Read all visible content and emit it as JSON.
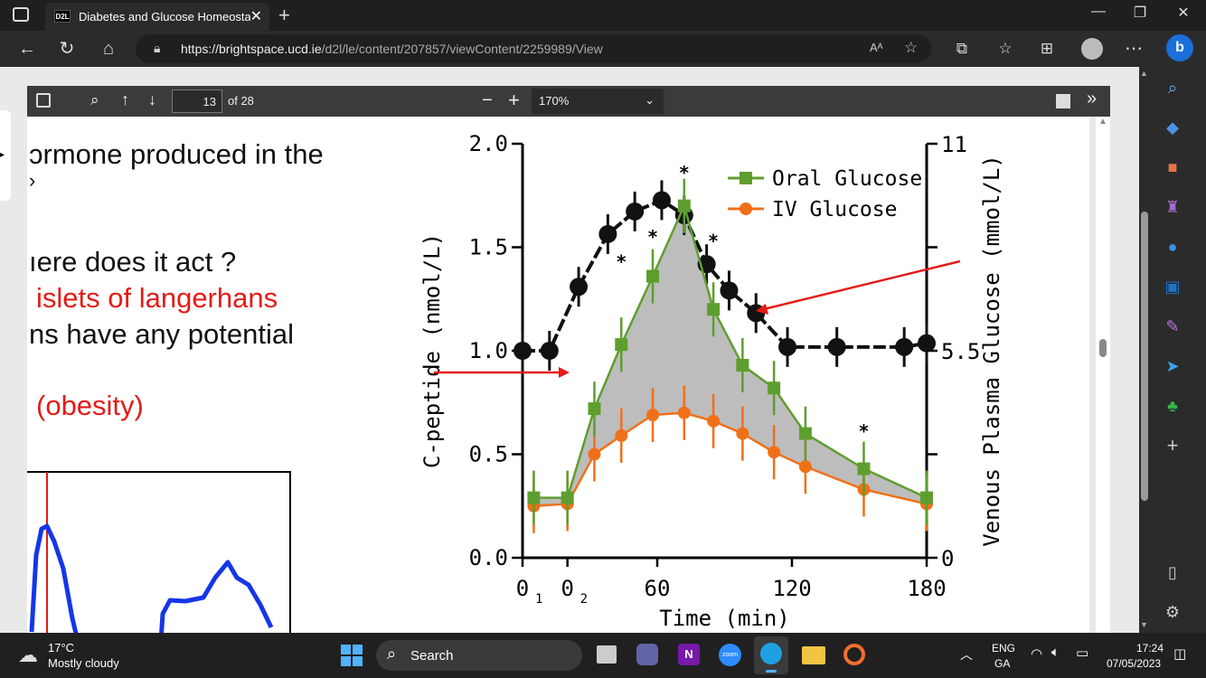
{
  "browser": {
    "tab_title": "Diabetes and Glucose Homeosta",
    "tab_favicon": "D2L",
    "url_domain": "https://brightspace.ucd.ie",
    "url_path": "/d2l/le/content/207857/viewContent/2259989/View"
  },
  "pdf_toolbar": {
    "page_current": "13",
    "page_total": "of 28",
    "zoom": "170%",
    "zoom_minus": "−",
    "zoom_plus": "+"
  },
  "slide": {
    "line1": "ɔrmone produced in the",
    "line2": "›",
    "line3": "ıere does it act ?",
    "line4": "islets of langerhans",
    "line5": "ns have any potential",
    "line6": "(obesity)"
  },
  "chart_data": {
    "type": "line",
    "xlabel": "Time (min)",
    "ylabel": "C-peptide (nmol/L)",
    "y2label": "Venous Plasma Glucose (mmol/L)",
    "x_ticks": [
      "0",
      "0",
      "60",
      "120",
      "180"
    ],
    "x_tick_subs": [
      "1",
      "2",
      "",
      "",
      ""
    ],
    "y_ticks": [
      "0.0",
      "0.5",
      "1.0",
      "1.5",
      "2.0"
    ],
    "y2_ticks": [
      "0",
      "5.5",
      "11"
    ],
    "ylim": [
      0,
      2.0
    ],
    "y2lim": [
      0,
      11
    ],
    "xlim": [
      0,
      180
    ],
    "series": [
      {
        "name": "Oral Glucose",
        "color": "#5e9e2f",
        "x": [
          5,
          20,
          32,
          44,
          58,
          72,
          85,
          98,
          112,
          126,
          152,
          180
        ],
        "y": [
          0.29,
          0.29,
          0.72,
          1.03,
          1.36,
          1.7,
          1.2,
          0.93,
          0.82,
          0.6,
          0.43,
          0.29
        ]
      },
      {
        "name": "IV Glucose",
        "color": "#f07018",
        "x": [
          5,
          20,
          32,
          44,
          58,
          72,
          85,
          98,
          112,
          126,
          152,
          180
        ],
        "y": [
          0.25,
          0.26,
          0.5,
          0.59,
          0.69,
          0.7,
          0.66,
          0.6,
          0.51,
          0.44,
          0.33,
          0.26
        ]
      },
      {
        "name": "",
        "color": "#111111",
        "axis": "right",
        "x": [
          0,
          12,
          25,
          38,
          50,
          62,
          72,
          82,
          92,
          104,
          118,
          140,
          170,
          180
        ],
        "y": [
          5.5,
          5.5,
          7.2,
          8.6,
          9.2,
          9.5,
          9.1,
          7.8,
          7.1,
          6.5,
          5.6,
          5.6,
          5.6,
          5.7
        ]
      }
    ],
    "significance_marker": "*",
    "significance_x": [
      44,
      58,
      72,
      85,
      152
    ]
  },
  "taskbar": {
    "weather_temp": "17°C",
    "weather_desc": "Mostly cloudy",
    "search_label": "Search",
    "lang1": "ENG",
    "lang2": "GA",
    "time": "17:24",
    "date": "07/05/2023"
  }
}
